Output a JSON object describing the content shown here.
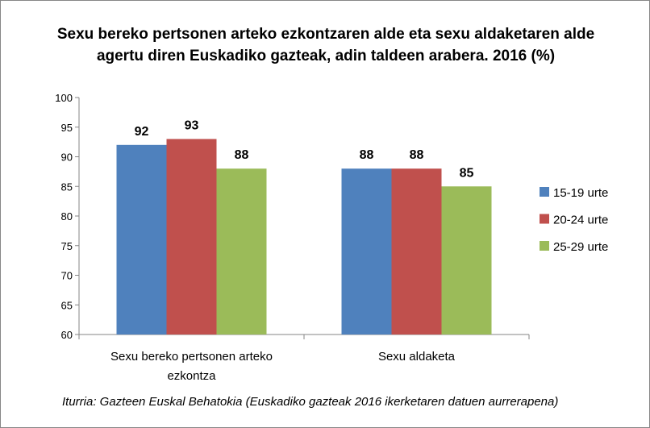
{
  "chart_data": {
    "type": "bar",
    "title_lines": [
      "Sexu bereko pertsonen arteko ezkontzaren alde eta sexu aldaketaren alde",
      "agertu diren Euskadiko gazteak, adin taldeen arabera. 2016 (%)"
    ],
    "categories": [
      "Sexu bereko pertsonen arteko ezkontza",
      "Sexu aldaketa"
    ],
    "series": [
      {
        "name": "15-19 urte",
        "color": "#4f81bd",
        "values": [
          92,
          88
        ]
      },
      {
        "name": "20-24 urte",
        "color": "#c0504d",
        "values": [
          93,
          88
        ]
      },
      {
        "name": "25-29 urte",
        "color": "#9bbb59",
        "values": [
          88,
          85
        ]
      }
    ],
    "ylim": [
      60,
      100
    ],
    "yticks": [
      60,
      65,
      70,
      75,
      80,
      85,
      90,
      95,
      100
    ],
    "xlabel": "",
    "ylabel": "",
    "grid": false,
    "legend": "right",
    "source": "Iturria: Gazteen Euskal Behatokia (Euskadiko gazteak 2016  ikerketaren datuen aurrerapena)"
  }
}
